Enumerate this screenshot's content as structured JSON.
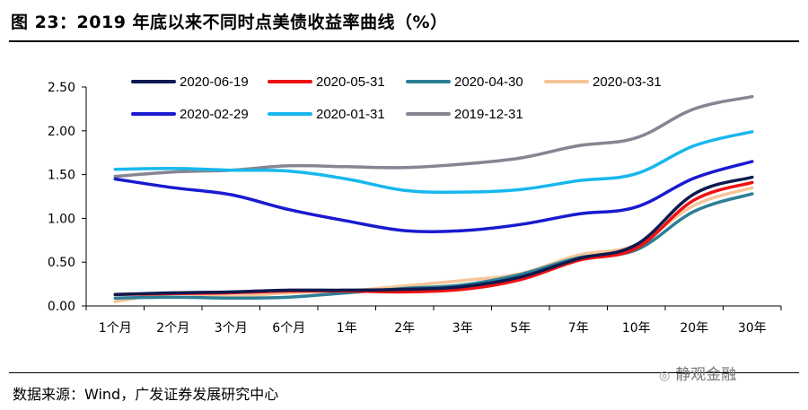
{
  "header": {
    "title": "图 23：2019 年底以来不同时点美债收益率曲线（%）"
  },
  "footer": {
    "source": "数据来源：Wind，广发证券发展研究中心",
    "watermark": "静观金融"
  },
  "chart_data": {
    "type": "line",
    "title": "2019 年底以来不同时点美债收益率曲线（%）",
    "xlabel": "",
    "ylabel": "",
    "categories": [
      "1个月",
      "2个月",
      "3个月",
      "6个月",
      "1年",
      "2年",
      "3年",
      "5年",
      "7年",
      "10年",
      "20年",
      "30年"
    ],
    "ylim": [
      0,
      2.5
    ],
    "yticks": [
      "0.00",
      "0.50",
      "1.00",
      "1.50",
      "2.00",
      "2.50"
    ],
    "grid": false,
    "legend_position": "top",
    "series": [
      {
        "name": "2020-06-19",
        "color": "#0d1a4f",
        "values": [
          0.13,
          0.15,
          0.16,
          0.18,
          0.18,
          0.19,
          0.22,
          0.33,
          0.54,
          0.7,
          1.28,
          1.47
        ]
      },
      {
        "name": "2020-05-31",
        "color": "#ee1111",
        "values": [
          0.13,
          0.14,
          0.15,
          0.17,
          0.17,
          0.16,
          0.19,
          0.3,
          0.52,
          0.66,
          1.21,
          1.41
        ]
      },
      {
        "name": "2020-04-30",
        "color": "#2c7f96",
        "values": [
          0.09,
          0.1,
          0.09,
          0.1,
          0.15,
          0.2,
          0.24,
          0.36,
          0.55,
          0.64,
          1.08,
          1.28
        ]
      },
      {
        "name": "2020-03-31",
        "color": "#f6c59a",
        "values": [
          0.05,
          0.14,
          0.11,
          0.15,
          0.17,
          0.23,
          0.29,
          0.37,
          0.58,
          0.7,
          1.15,
          1.35
        ]
      },
      {
        "name": "2020-02-29",
        "color": "#1a1ad0",
        "values": [
          1.45,
          1.35,
          1.27,
          1.1,
          0.97,
          0.86,
          0.86,
          0.93,
          1.05,
          1.13,
          1.46,
          1.65
        ]
      },
      {
        "name": "2020-01-31",
        "color": "#18b7ee",
        "values": [
          1.56,
          1.57,
          1.55,
          1.54,
          1.45,
          1.32,
          1.3,
          1.33,
          1.43,
          1.51,
          1.83,
          1.99
        ]
      },
      {
        "name": "2019-12-31",
        "color": "#858593",
        "values": [
          1.48,
          1.53,
          1.55,
          1.6,
          1.59,
          1.58,
          1.62,
          1.69,
          1.83,
          1.92,
          2.25,
          2.39
        ]
      }
    ]
  }
}
